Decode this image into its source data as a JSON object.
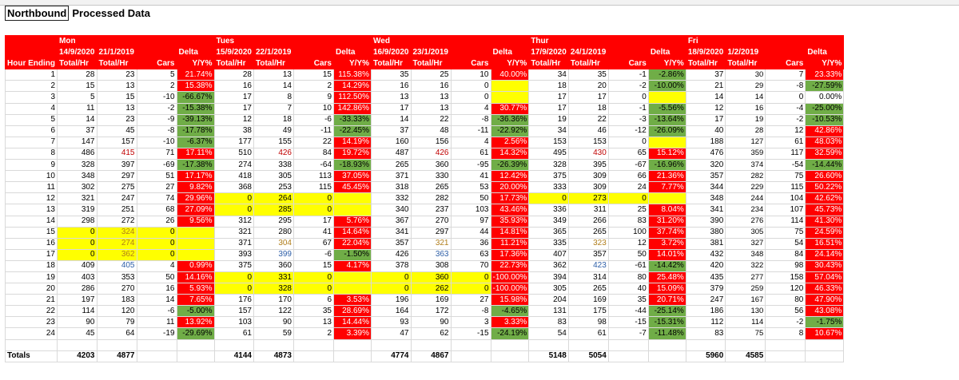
{
  "title": {
    "cell1": "Northbound",
    "cell2": "Processed Data"
  },
  "days": [
    {
      "name": "Mon",
      "date1": "14/9/2020",
      "date2": "21/1/2019"
    },
    {
      "name": "Tues",
      "date1": "15/9/2020",
      "date2": "22/1/2019"
    },
    {
      "name": "Wed",
      "date1": "16/9/2020",
      "date2": "23/1/2019"
    },
    {
      "name": "Thur",
      "date1": "17/9/2020",
      "date2": "24/1/2019"
    },
    {
      "name": "Fri",
      "date1": "18/9/2020",
      "date2": "1/2/2019"
    }
  ],
  "labels": {
    "delta": "Delta",
    "total": "Total/Hr",
    "cars": "Cars",
    "yy": "Y/Y%",
    "hour_ending": "Hour Ending",
    "totals": "Totals"
  },
  "rows": [
    [
      1,
      [
        "28",
        "23",
        "5",
        "21.74%"
      ],
      [
        "28",
        "13",
        "15",
        "115.38%"
      ],
      [
        "35",
        "25",
        "10",
        "40.00%"
      ],
      [
        "34",
        "35",
        "-1",
        "-2.86%"
      ],
      [
        "37",
        "30",
        "7",
        "23.33%"
      ]
    ],
    [
      2,
      [
        "15",
        "13",
        "2",
        "15.38%"
      ],
      [
        "16",
        "14",
        "2",
        "14.29%"
      ],
      [
        "16",
        "16",
        "0",
        ""
      ],
      [
        "18",
        "20",
        "-2",
        "-10.00%"
      ],
      [
        "21",
        "29",
        "-8",
        "-27.59%"
      ]
    ],
    [
      3,
      [
        "5",
        "15",
        "-10",
        "-66.67%"
      ],
      [
        "17",
        "8",
        "9",
        "112.50%"
      ],
      [
        "13",
        "13",
        "0",
        ""
      ],
      [
        "17",
        "17",
        "0",
        ""
      ],
      [
        "14",
        "14",
        "0",
        "0.00%"
      ]
    ],
    [
      4,
      [
        "11",
        "13",
        "-2",
        "-15.38%"
      ],
      [
        "17",
        "7",
        "10",
        "142.86%"
      ],
      [
        "17",
        "13",
        "4",
        "30.77%"
      ],
      [
        "17",
        "18",
        "-1",
        "-5.56%"
      ],
      [
        "12",
        "16",
        "-4",
        "-25.00%"
      ]
    ],
    [
      5,
      [
        "14",
        "23",
        "-9",
        "-39.13%"
      ],
      [
        "12",
        "18",
        "-6",
        "-33.33%"
      ],
      [
        "14",
        "22",
        "-8",
        "-36.36%"
      ],
      [
        "19",
        "22",
        "-3",
        "-13.64%"
      ],
      [
        "17",
        "19",
        "-2",
        "-10.53%"
      ]
    ],
    [
      6,
      [
        "37",
        "45",
        "-8",
        "-17.78%"
      ],
      [
        "38",
        "49",
        "-11",
        "-22.45%"
      ],
      [
        "37",
        "48",
        "-11",
        "-22.92%"
      ],
      [
        "34",
        "46",
        "-12",
        "-26.09%"
      ],
      [
        "40",
        "28",
        "12",
        "42.86%"
      ]
    ],
    [
      7,
      [
        "147",
        "157",
        "-10",
        "-6.37%"
      ],
      [
        "177",
        "155",
        "22",
        "14.19%"
      ],
      [
        "160",
        "156",
        "4",
        "2.56%"
      ],
      [
        "153",
        "153",
        "0",
        ""
      ],
      [
        "188",
        "127",
        "61",
        "48.03%"
      ]
    ],
    [
      8,
      [
        "486",
        "415",
        "71",
        "17.11%"
      ],
      [
        "510",
        "426",
        "84",
        "19.72%"
      ],
      [
        "487",
        "426",
        "61",
        "14.32%"
      ],
      [
        "495",
        "430",
        "65",
        "15.12%"
      ],
      [
        "476",
        "359",
        "117",
        "32.59%"
      ]
    ],
    [
      9,
      [
        "328",
        "397",
        "-69",
        "-17.38%"
      ],
      [
        "274",
        "338",
        "-64",
        "-18.93%"
      ],
      [
        "265",
        "360",
        "-95",
        "-26.39%"
      ],
      [
        "328",
        "395",
        "-67",
        "-16.96%"
      ],
      [
        "320",
        "374",
        "-54",
        "-14.44%"
      ]
    ],
    [
      10,
      [
        "348",
        "297",
        "51",
        "17.17%"
      ],
      [
        "418",
        "305",
        "113",
        "37.05%"
      ],
      [
        "371",
        "330",
        "41",
        "12.42%"
      ],
      [
        "375",
        "309",
        "66",
        "21.36%"
      ],
      [
        "357",
        "282",
        "75",
        "26.60%"
      ]
    ],
    [
      11,
      [
        "302",
        "275",
        "27",
        "9.82%"
      ],
      [
        "368",
        "253",
        "115",
        "45.45%"
      ],
      [
        "318",
        "265",
        "53",
        "20.00%"
      ],
      [
        "333",
        "309",
        "24",
        "7.77%"
      ],
      [
        "344",
        "229",
        "115",
        "50.22%"
      ]
    ],
    [
      12,
      [
        "321",
        "247",
        "74",
        "29.96%"
      ],
      [
        "0",
        "264",
        "0",
        ""
      ],
      [
        "332",
        "282",
        "50",
        "17.73%"
      ],
      [
        "0",
        "273",
        "0",
        ""
      ],
      [
        "348",
        "244",
        "104",
        "42.62%"
      ]
    ],
    [
      13,
      [
        "319",
        "251",
        "68",
        "27.09%"
      ],
      [
        "0",
        "285",
        "0",
        ""
      ],
      [
        "340",
        "237",
        "103",
        "43.46%"
      ],
      [
        "336",
        "311",
        "25",
        "8.04%"
      ],
      [
        "341",
        "234",
        "107",
        "45.73%"
      ]
    ],
    [
      14,
      [
        "298",
        "272",
        "26",
        "9.56%"
      ],
      [
        "312",
        "295",
        "17",
        "5.76%"
      ],
      [
        "367",
        "270",
        "97",
        "35.93%"
      ],
      [
        "349",
        "266",
        "83",
        "31.20%"
      ],
      [
        "390",
        "276",
        "114",
        "41.30%"
      ]
    ],
    [
      15,
      [
        "0",
        "324",
        "0",
        ""
      ],
      [
        "321",
        "280",
        "41",
        "14.64%"
      ],
      [
        "341",
        "297",
        "44",
        "14.81%"
      ],
      [
        "365",
        "265",
        "100",
        "37.74%"
      ],
      [
        "380",
        "305",
        "75",
        "24.59%"
      ]
    ],
    [
      16,
      [
        "0",
        "274",
        "0",
        ""
      ],
      [
        "371",
        "304",
        "67",
        "22.04%"
      ],
      [
        "357",
        "321",
        "36",
        "11.21%"
      ],
      [
        "335",
        "323",
        "12",
        "3.72%"
      ],
      [
        "381",
        "327",
        "54",
        "16.51%"
      ]
    ],
    [
      17,
      [
        "0",
        "362",
        "0",
        ""
      ],
      [
        "393",
        "399",
        "-6",
        "-1.50%"
      ],
      [
        "426",
        "363",
        "63",
        "17.36%"
      ],
      [
        "407",
        "357",
        "50",
        "14.01%"
      ],
      [
        "432",
        "348",
        "84",
        "24.14%"
      ]
    ],
    [
      18,
      [
        "409",
        "405",
        "4",
        "0.99%"
      ],
      [
        "375",
        "360",
        "15",
        "4.17%"
      ],
      [
        "378",
        "308",
        "70",
        "22.73%"
      ],
      [
        "362",
        "423",
        "-61",
        "-14.42%"
      ],
      [
        "420",
        "322",
        "98",
        "30.43%"
      ]
    ],
    [
      19,
      [
        "403",
        "353",
        "50",
        "14.16%"
      ],
      [
        "0",
        "331",
        "0",
        ""
      ],
      [
        "0",
        "360",
        "0",
        "-100.00%"
      ],
      [
        "394",
        "314",
        "80",
        "25.48%"
      ],
      [
        "435",
        "277",
        "158",
        "57.04%"
      ]
    ],
    [
      20,
      [
        "286",
        "270",
        "16",
        "5.93%"
      ],
      [
        "0",
        "328",
        "0",
        ""
      ],
      [
        "0",
        "262",
        "0",
        "-100.00%"
      ],
      [
        "305",
        "265",
        "40",
        "15.09%"
      ],
      [
        "379",
        "259",
        "120",
        "46.33%"
      ]
    ],
    [
      21,
      [
        "197",
        "183",
        "14",
        "7.65%"
      ],
      [
        "176",
        "170",
        "6",
        "3.53%"
      ],
      [
        "196",
        "169",
        "27",
        "15.98%"
      ],
      [
        "204",
        "169",
        "35",
        "20.71%"
      ],
      [
        "247",
        "167",
        "80",
        "47.90%"
      ]
    ],
    [
      22,
      [
        "114",
        "120",
        "-6",
        "-5.00%"
      ],
      [
        "157",
        "122",
        "35",
        "28.69%"
      ],
      [
        "164",
        "172",
        "-8",
        "-4.65%"
      ],
      [
        "131",
        "175",
        "-44",
        "-25.14%"
      ],
      [
        "186",
        "130",
        "56",
        "43.08%"
      ]
    ],
    [
      23,
      [
        "90",
        "79",
        "11",
        "13.92%"
      ],
      [
        "103",
        "90",
        "13",
        "14.44%"
      ],
      [
        "93",
        "90",
        "3",
        "3.33%"
      ],
      [
        "83",
        "98",
        "-15",
        "-15.31%"
      ],
      [
        "112",
        "114",
        "-2",
        "-1.75%"
      ]
    ],
    [
      24,
      [
        "45",
        "64",
        "-19",
        "-29.69%"
      ],
      [
        "61",
        "59",
        "2",
        "3.39%"
      ],
      [
        "47",
        "62",
        "-15",
        "-24.19%"
      ],
      [
        "54",
        "61",
        "-7",
        "-11.48%"
      ],
      [
        "83",
        "75",
        "8",
        "10.67%"
      ]
    ]
  ],
  "totals": [
    [
      "4203",
      "4877"
    ],
    [
      "4144",
      "4873"
    ],
    [
      "4774",
      "4867"
    ],
    [
      "5148",
      "5054"
    ],
    [
      "5960",
      "4585"
    ]
  ],
  "colors": {
    "red": "#ff0000",
    "green": "#70ad47",
    "yellow": "#ffff00",
    "header_text": "#ffffff"
  }
}
